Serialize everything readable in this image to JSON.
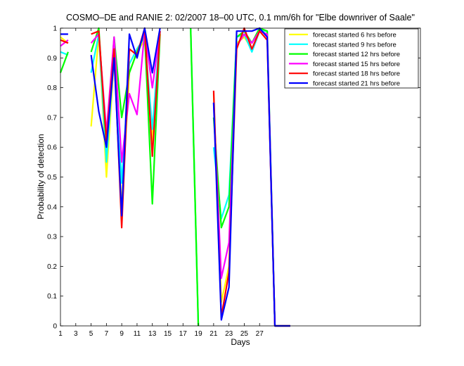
{
  "chart_data": {
    "type": "line",
    "title": "COSMO–DE and RANIE 2: 02/2007 18–00 UTC, 0.1 mm/6h for \"Elbe downriver of Saale\"",
    "xlabel": "Days",
    "ylabel": "Probability of detection",
    "xlim": [
      1,
      48
    ],
    "ylim": [
      0,
      1
    ],
    "x_ticks": [
      1,
      3,
      5,
      7,
      9,
      11,
      13,
      15,
      17,
      19,
      21,
      23,
      25,
      27
    ],
    "y_ticks": [
      0,
      0.1,
      0.2,
      0.3,
      0.4,
      0.5,
      0.6,
      0.7,
      0.8,
      0.9,
      1
    ],
    "y_tick_labels": [
      "0",
      "0.1",
      "0.2",
      "0.3",
      "0.4",
      "0.5",
      "0.6",
      "0.7",
      "0.8",
      "0.9",
      "1"
    ],
    "legend_position": "top-right",
    "grid": false,
    "x": [
      1,
      2,
      3,
      4,
      5,
      6,
      7,
      8,
      9,
      10,
      11,
      12,
      13,
      14,
      15,
      16,
      17,
      18,
      19,
      20,
      21,
      22,
      23,
      24,
      25,
      26,
      27,
      28,
      29,
      30,
      31
    ],
    "series": [
      {
        "name": "forecast started 6 hrs before",
        "color": "#ffff00",
        "values": [
          0.97,
          0.95,
          null,
          null,
          0.67,
          0.98,
          0.5,
          0.9,
          0.4,
          0.85,
          0.92,
          0.96,
          0.62,
          0.98,
          null,
          null,
          null,
          1.0,
          0.0,
          null,
          0.78,
          0.08,
          0.2,
          0.95,
          0.97,
          0.93,
          0.99,
          0.98,
          0.0,
          0.0,
          0.0
        ]
      },
      {
        "name": "forecast started 9 hrs before",
        "color": "#00ffff",
        "values": [
          0.92,
          0.91,
          null,
          null,
          0.85,
          0.98,
          0.55,
          0.92,
          0.48,
          0.88,
          0.93,
          0.97,
          0.66,
          0.99,
          null,
          null,
          null,
          1.0,
          0.0,
          null,
          0.6,
          0.36,
          0.44,
          0.97,
          0.98,
          0.92,
          0.99,
          0.99,
          0.0,
          0.0,
          0.0
        ]
      },
      {
        "name": "forecast started 12 hrs before",
        "color": "#00ff00",
        "values": [
          0.85,
          0.92,
          null,
          null,
          0.92,
          1.0,
          0.6,
          0.97,
          0.7,
          0.85,
          0.92,
          0.98,
          0.41,
          0.98,
          null,
          null,
          null,
          1.0,
          0.0,
          null,
          0.7,
          0.33,
          0.4,
          0.97,
          0.99,
          0.95,
          1.0,
          0.99,
          0.0,
          0.0,
          0.0
        ]
      },
      {
        "name": "forecast started 15 hrs before",
        "color": "#ff00ff",
        "values": [
          0.94,
          0.96,
          null,
          null,
          0.95,
          0.98,
          0.65,
          0.97,
          0.55,
          0.78,
          0.71,
          0.99,
          0.8,
          0.99,
          null,
          null,
          null,
          null,
          null,
          null,
          0.75,
          0.16,
          0.28,
          0.94,
          0.98,
          0.95,
          0.99,
          0.98,
          0.0,
          0.0,
          0.0
        ]
      },
      {
        "name": "forecast started 18 hrs before",
        "color": "#ff0000",
        "values": [
          0.96,
          0.95,
          null,
          null,
          0.98,
          0.99,
          0.62,
          0.93,
          0.33,
          0.93,
          0.91,
          1.0,
          0.57,
          0.99,
          null,
          null,
          null,
          null,
          null,
          null,
          0.79,
          0.03,
          0.18,
          0.93,
          1.0,
          0.93,
          0.99,
          0.96,
          0.0,
          0.0,
          0.0
        ]
      },
      {
        "name": "forecast started 21 hrs before",
        "color": "#0000ff",
        "values": [
          0.98,
          0.98,
          null,
          null,
          0.91,
          0.72,
          0.6,
          0.9,
          0.37,
          0.98,
          0.9,
          1.0,
          0.85,
          1.0,
          null,
          null,
          null,
          null,
          null,
          null,
          0.75,
          0.02,
          0.13,
          0.99,
          0.99,
          0.99,
          1.0,
          0.97,
          0.0,
          0.0,
          0.0
        ]
      }
    ]
  }
}
